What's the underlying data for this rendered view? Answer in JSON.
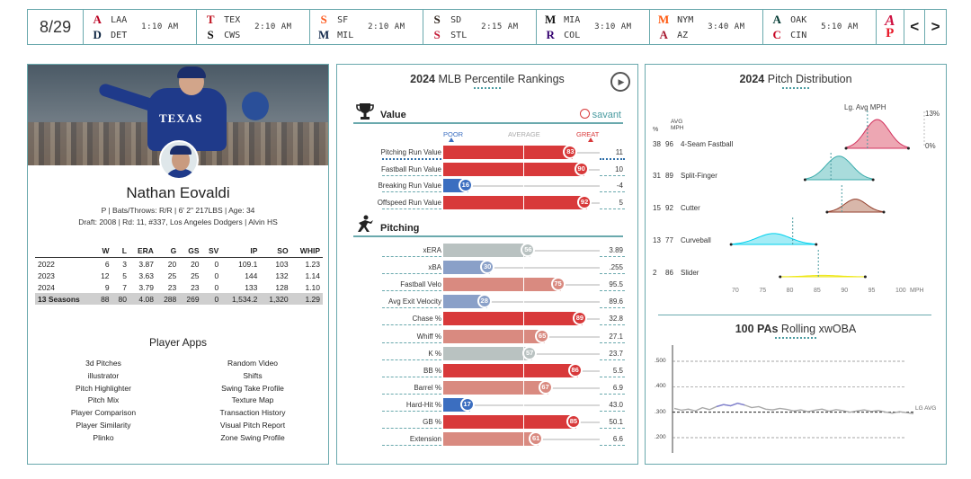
{
  "date": "8/29",
  "games": [
    {
      "away": "LAA",
      "home": "DET",
      "time": "1:10 AM",
      "away_color": "#ba0021",
      "home_color": "#0c2340",
      "away_glyph": "A",
      "home_glyph": "D"
    },
    {
      "away": "TEX",
      "home": "CWS",
      "time": "2:10 AM",
      "away_color": "#c0111f",
      "home_color": "#111111",
      "away_glyph": "T",
      "home_glyph": "S"
    },
    {
      "away": "SF",
      "home": "MIL",
      "time": "2:10 AM",
      "away_color": "#fd5a1e",
      "home_color": "#12284b",
      "away_glyph": "S",
      "home_glyph": "M"
    },
    {
      "away": "SD",
      "home": "STL",
      "time": "2:15 AM",
      "away_color": "#2f241d",
      "home_color": "#c41e3a",
      "away_glyph": "S",
      "home_glyph": "S"
    },
    {
      "away": "MIA",
      "home": "COL",
      "time": "3:10 AM",
      "away_color": "#111111",
      "home_color": "#33006f",
      "away_glyph": "M",
      "home_glyph": "R"
    },
    {
      "away": "NYM",
      "home": "AZ",
      "time": "3:40 AM",
      "away_color": "#ff5910",
      "home_color": "#a71930",
      "away_glyph": "M",
      "home_glyph": "A"
    },
    {
      "away": "OAK",
      "home": "CIN",
      "time": "5:10 AM",
      "away_color": "#003831",
      "home_color": "#c6011f",
      "away_glyph": "A",
      "home_glyph": "C"
    }
  ],
  "nav": {
    "prev": "<",
    "next": ">",
    "logo1_color": "#ce1141",
    "logo2_color": "#e81828"
  },
  "player": {
    "name": "Nathan Eovaldi",
    "info": "P | Bats/Throws: R/R | 6' 2\" 217LBS | Age: 34",
    "draft": "Draft: 2008 | Rd: 11, #337, Los Angeles Dodgers | Alvin HS",
    "jersey_text": "TEXAS"
  },
  "stats": {
    "headers": [
      "",
      "W",
      "L",
      "ERA",
      "G",
      "GS",
      "SV",
      "IP",
      "SO",
      "WHIP"
    ],
    "rows": [
      [
        "2022",
        "6",
        "3",
        "3.87",
        "20",
        "20",
        "0",
        "109.1",
        "103",
        "1.23"
      ],
      [
        "2023",
        "12",
        "5",
        "3.63",
        "25",
        "25",
        "0",
        "144",
        "132",
        "1.14"
      ],
      [
        "2024",
        "9",
        "7",
        "3.79",
        "23",
        "23",
        "0",
        "133",
        "128",
        "1.10"
      ],
      [
        "13 Seasons",
        "88",
        "80",
        "4.08",
        "288",
        "269",
        "0",
        "1,534.2",
        "1,320",
        "1.29"
      ]
    ]
  },
  "apps": {
    "title": "Player Apps",
    "col1": [
      "3d Pitches",
      "illustrator",
      "Pitch Highlighter",
      "Pitch Mix",
      "Player Comparison",
      "Player Similarity",
      "Plinko"
    ],
    "col2": [
      "Random Video",
      "Shifts",
      "Swing Take Profile",
      "Texture Map",
      "Transaction History",
      "Visual Pitch Report",
      "Zone Swing Profile"
    ]
  },
  "rankings": {
    "title_bold": "2024",
    "title_rest": " MLB Percentile Rankings",
    "value_label": "Value",
    "pitching_label": "Pitching",
    "savant": "savant",
    "poor": "POOR",
    "average": "AVERAGE",
    "great": "GREAT",
    "value_rows": [
      {
        "label": "Pitching Run Value",
        "pct": 83,
        "value": "11"
      },
      {
        "label": "Fastball Run Value",
        "pct": 90,
        "value": "10"
      },
      {
        "label": "Breaking Run Value",
        "pct": 16,
        "value": "-4"
      },
      {
        "label": "Offspeed Run Value",
        "pct": 92,
        "value": "5"
      }
    ],
    "pitching_rows": [
      {
        "label": "xERA",
        "pct": 56,
        "value": "3.89"
      },
      {
        "label": "xBA",
        "pct": 30,
        "value": ".255"
      },
      {
        "label": "Fastball Velo",
        "pct": 75,
        "value": "95.5"
      },
      {
        "label": "Avg Exit Velocity",
        "pct": 28,
        "value": "89.6"
      },
      {
        "label": "Chase %",
        "pct": 89,
        "value": "32.8"
      },
      {
        "label": "Whiff %",
        "pct": 65,
        "value": "27.1"
      },
      {
        "label": "K %",
        "pct": 57,
        "value": "23.7"
      },
      {
        "label": "BB %",
        "pct": 86,
        "value": "5.5"
      },
      {
        "label": "Barrel %",
        "pct": 67,
        "value": "6.9"
      },
      {
        "label": "Hard-Hit %",
        "pct": 17,
        "value": "43.0"
      },
      {
        "label": "GB %",
        "pct": 85,
        "value": "50.1"
      },
      {
        "label": "Extension",
        "pct": 61,
        "value": "6.6"
      }
    ],
    "colors": {
      "great": "#d8393a",
      "good": "#d98a80",
      "avg": "#b9c2c1",
      "below": "#8aa0c8",
      "poor": "#3b6ec0"
    }
  },
  "pitch_dist": {
    "title_bold": "2024",
    "title_rest": " Pitch Distribution",
    "lg_avg_label": "Lg. Avg MPH",
    "pct_hdr": "%",
    "avg_hdr": "AVG",
    "mph_hdr": "MPH",
    "pct_max": "13%",
    "pct_min": "0%",
    "x_axis_unit": "MPH",
    "x_ticks": [
      70,
      75,
      80,
      85,
      90,
      95,
      100
    ],
    "pitches": [
      {
        "pct": "38",
        "avg": "96",
        "name": "4-Seam Fastball",
        "mean": 96,
        "lg": 94.2,
        "color": "#d2315d",
        "fill": "#eda7b3",
        "spread": 2.2,
        "height": 1.0
      },
      {
        "pct": "31",
        "avg": "89",
        "name": "Split-Finger",
        "mean": 89,
        "lg": 87.5,
        "color": "#3bacac",
        "fill": "#a9dcdc",
        "spread": 2.4,
        "height": 0.82
      },
      {
        "pct": "15",
        "avg": "92",
        "name": "Cutter",
        "mean": 92,
        "lg": 89.5,
        "color": "#933f2c",
        "fill": "#d8b7aa",
        "spread": 2.0,
        "height": 0.45
      },
      {
        "pct": "13",
        "avg": "77",
        "name": "Curveball",
        "mean": 77,
        "lg": 80.5,
        "color": "#00d1ed",
        "fill": "#a4ecf6",
        "spread": 3.0,
        "height": 0.38
      },
      {
        "pct": "2",
        "avg": "86",
        "name": "Slider",
        "mean": 86,
        "lg": 85.2,
        "color": "#eee716",
        "fill": "#f3ef9a",
        "spread": 3.0,
        "height": 0.05
      }
    ]
  },
  "xwoba": {
    "title_bold": "100 PAs",
    "title_rest": " Rolling xwOBA",
    "y_ticks": [
      ".500",
      ".400",
      ".300",
      ".200"
    ],
    "lg_label": "LG AVG",
    "lg_value": 0.3,
    "series": [
      0.315,
      0.308,
      0.312,
      0.305,
      0.318,
      0.31,
      0.322,
      0.33,
      0.325,
      0.335,
      0.328,
      0.318,
      0.322,
      0.312,
      0.309,
      0.315,
      0.311,
      0.305,
      0.309,
      0.302,
      0.308,
      0.312,
      0.304,
      0.31,
      0.306,
      0.3,
      0.305,
      0.309,
      0.303,
      0.307,
      0.301,
      0.296,
      0.302,
      0.298,
      0.294
    ]
  }
}
